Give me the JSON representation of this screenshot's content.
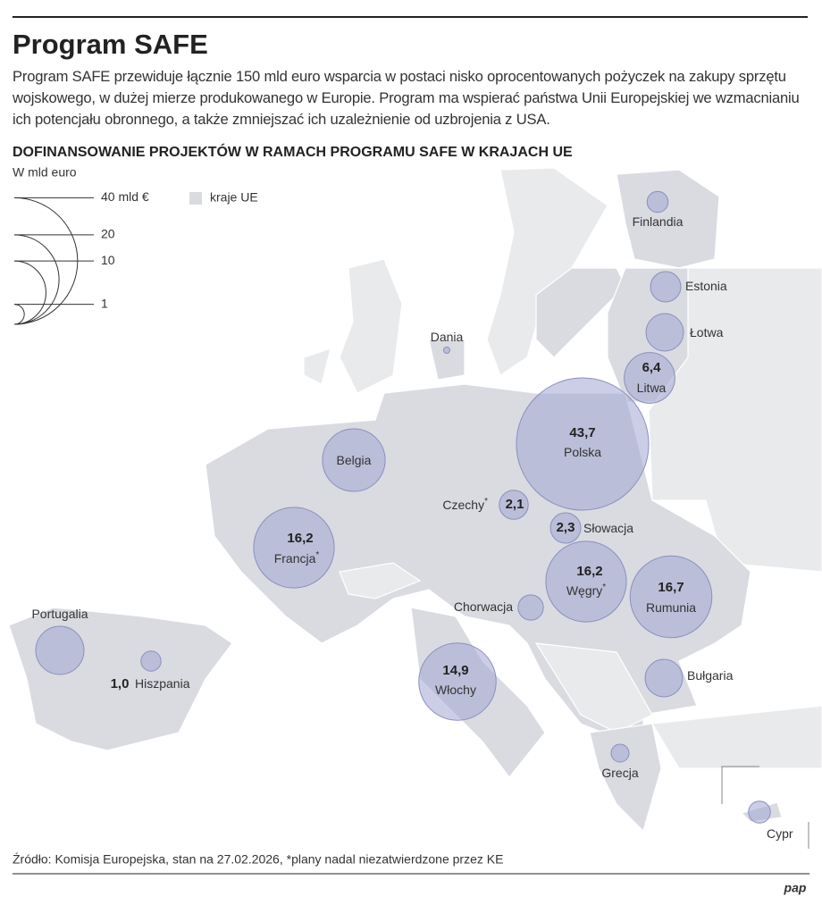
{
  "header": {
    "title": "Program SAFE",
    "description": "Program SAFE przewiduje łącznie 150 mld euro wsparcia w postaci nisko oprocentowanych pożyczek na zakupy sprzętu wojskowego, w dużej mierze produkowanego w Europie. Program ma wspierać państwa Unii Europejskiej we wzmacnianiu ich potencjału obronnego, a także zmniejszać ich uzależnienie od uzbrojenia z USA."
  },
  "map": {
    "title": "DOFINANSOWANIE PROJEKTÓW W RAMACH PROGRAMU SAFE W KRAJACH UE",
    "unit": "W mld euro",
    "size_legend": [
      {
        "value": 40,
        "label": "40 mld €"
      },
      20,
      10,
      1
    ],
    "area_legend": "kraje UE",
    "countries": [
      {
        "name": "Finlandia",
        "value": 1.1
      },
      {
        "name": "Estonia",
        "value": 2.3
      },
      {
        "name": "Łotwa",
        "value": 3.5
      },
      {
        "name": "Litwa",
        "value": 6.4,
        "value_label": "6,4"
      },
      {
        "name": "Dania",
        "value": 0.1
      },
      {
        "name": "Polska",
        "value": 43.7,
        "value_label": "43,7"
      },
      {
        "name": "Belgia",
        "value": 9.8
      },
      {
        "name": "Czechy",
        "value": 2.1,
        "value_label": "2,1",
        "note": "*"
      },
      {
        "name": "Słowacja",
        "value": 2.3,
        "value_label": "2,3"
      },
      {
        "name": "Francja",
        "value": 16.2,
        "value_label": "16,2",
        "note": "*"
      },
      {
        "name": "Węgry",
        "value": 16.2,
        "value_label": "16,2",
        "note": "*"
      },
      {
        "name": "Rumunia",
        "value": 16.7,
        "value_label": "16,7"
      },
      {
        "name": "Chorwacja",
        "value": 1.6
      },
      {
        "name": "Portugalia",
        "value": 5.8
      },
      {
        "name": "Hiszpania",
        "value": 1.0,
        "value_label": "1,0"
      },
      {
        "name": "Włochy",
        "value": 14.9,
        "value_label": "14,9"
      },
      {
        "name": "Bułgaria",
        "value": 3.5
      },
      {
        "name": "Grecja",
        "value": 0.8
      },
      {
        "name": "Cypr",
        "value": 1.2
      }
    ]
  },
  "footer": {
    "source": "Źródło: Komisja Europejska, stan na 27.02.2026, *plany nadal niezatwierdzone przez KE",
    "logo": "pap"
  }
}
